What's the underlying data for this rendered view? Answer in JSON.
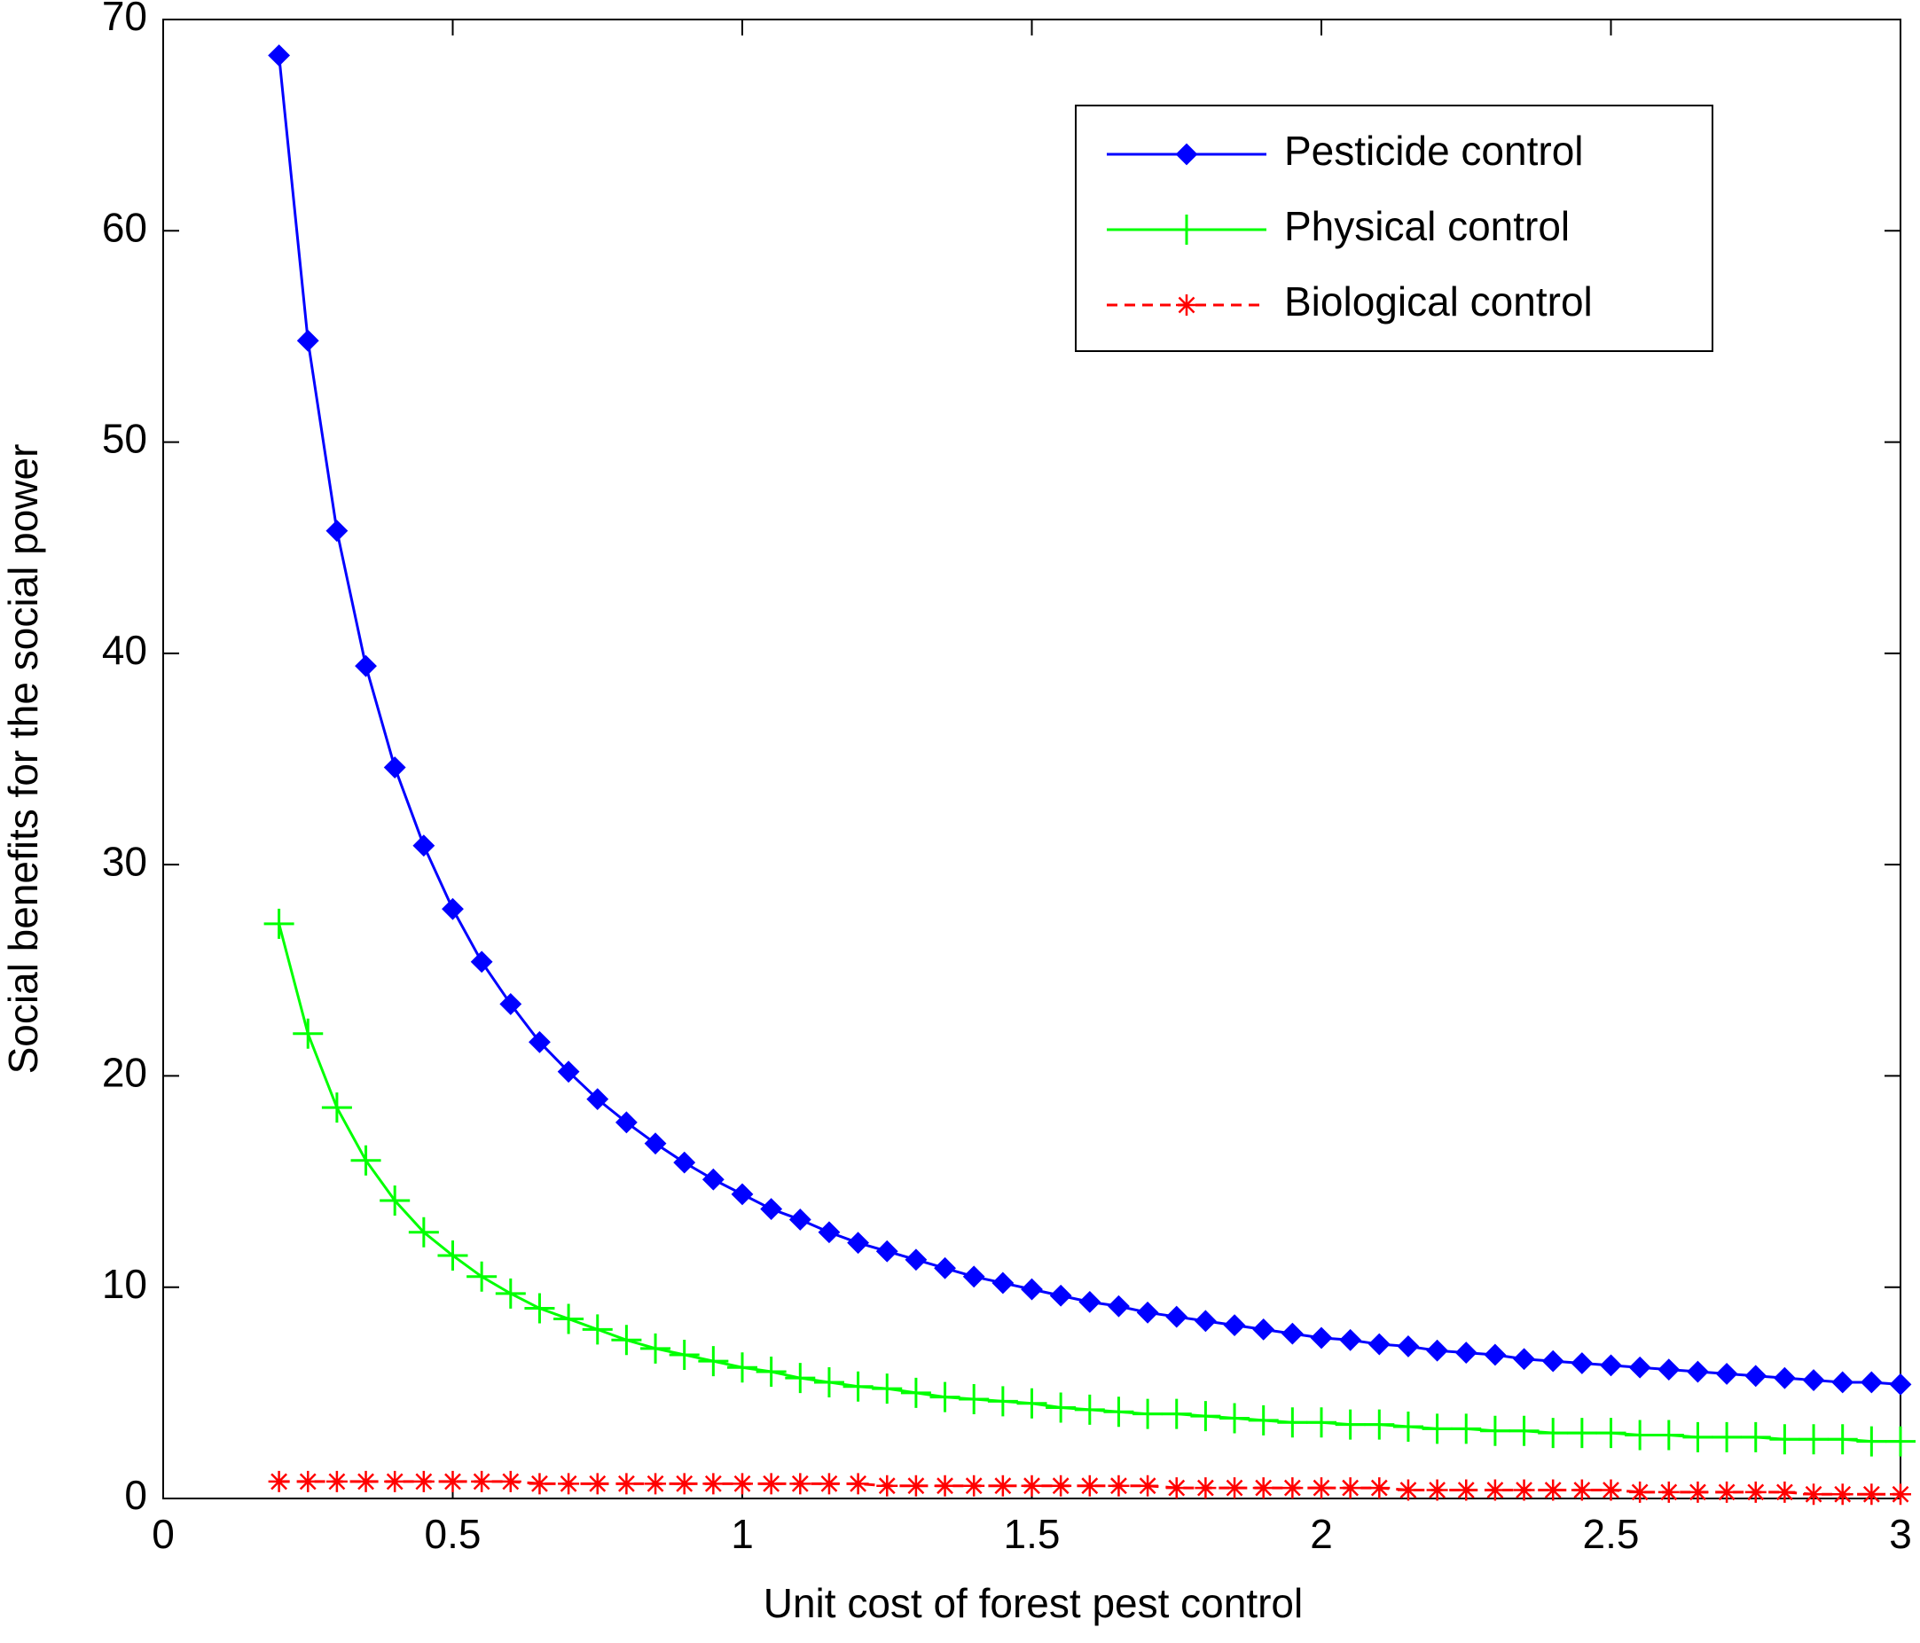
{
  "chart_data": {
    "type": "line",
    "xlabel": "Unit cost of forest pest control",
    "ylabel": "Social benefits for the social power",
    "x": [
      0.2,
      0.25,
      0.3,
      0.35,
      0.4,
      0.45,
      0.5,
      0.55,
      0.6,
      0.65,
      0.7,
      0.75,
      0.8,
      0.85,
      0.9,
      0.95,
      1.0,
      1.05,
      1.1,
      1.15,
      1.2,
      1.25,
      1.3,
      1.35,
      1.4,
      1.45,
      1.5,
      1.55,
      1.6,
      1.65,
      1.7,
      1.75,
      1.8,
      1.85,
      1.9,
      1.95,
      2.0,
      2.05,
      2.1,
      2.15,
      2.2,
      2.25,
      2.3,
      2.35,
      2.4,
      2.45,
      2.5,
      2.55,
      2.6,
      2.65,
      2.7,
      2.75,
      2.8,
      2.85,
      2.9,
      2.95,
      3.0
    ],
    "series": [
      {
        "name": "Pesticide control",
        "color": "#0000ff",
        "marker": "diamond",
        "dashed": false,
        "values": [
          68.3,
          54.8,
          45.8,
          39.4,
          34.6,
          30.9,
          27.9,
          25.4,
          23.4,
          21.6,
          20.2,
          18.9,
          17.8,
          16.8,
          15.9,
          15.1,
          14.4,
          13.7,
          13.2,
          12.6,
          12.1,
          11.7,
          11.3,
          10.9,
          10.5,
          10.2,
          9.9,
          9.6,
          9.3,
          9.1,
          8.8,
          8.6,
          8.4,
          8.2,
          8.0,
          7.8,
          7.6,
          7.5,
          7.3,
          7.2,
          7.0,
          6.9,
          6.8,
          6.6,
          6.5,
          6.4,
          6.3,
          6.2,
          6.1,
          6.0,
          5.9,
          5.8,
          5.7,
          5.6,
          5.5,
          5.5,
          5.4
        ]
      },
      {
        "name": "Physical control",
        "color": "#00ff00",
        "marker": "plus",
        "dashed": false,
        "values": [
          27.2,
          22.0,
          18.5,
          16.0,
          14.1,
          12.6,
          11.5,
          10.5,
          9.7,
          9.0,
          8.5,
          8.0,
          7.5,
          7.1,
          6.8,
          6.5,
          6.2,
          6.0,
          5.7,
          5.5,
          5.3,
          5.2,
          5.0,
          4.8,
          4.7,
          4.6,
          4.5,
          4.3,
          4.2,
          4.1,
          4.0,
          4.0,
          3.9,
          3.8,
          3.7,
          3.6,
          3.6,
          3.5,
          3.5,
          3.4,
          3.3,
          3.3,
          3.2,
          3.2,
          3.1,
          3.1,
          3.1,
          3.0,
          3.0,
          2.9,
          2.9,
          2.9,
          2.8,
          2.8,
          2.8,
          2.7,
          2.7
        ]
      },
      {
        "name": "Biological control",
        "color": "#ff0000",
        "marker": "asterisk",
        "dashed": true,
        "values": [
          0.8,
          0.8,
          0.8,
          0.8,
          0.8,
          0.8,
          0.8,
          0.8,
          0.8,
          0.7,
          0.7,
          0.7,
          0.7,
          0.7,
          0.7,
          0.7,
          0.7,
          0.7,
          0.7,
          0.7,
          0.7,
          0.6,
          0.6,
          0.6,
          0.6,
          0.6,
          0.6,
          0.6,
          0.6,
          0.6,
          0.6,
          0.5,
          0.5,
          0.5,
          0.5,
          0.5,
          0.5,
          0.5,
          0.5,
          0.4,
          0.4,
          0.4,
          0.4,
          0.4,
          0.4,
          0.4,
          0.4,
          0.3,
          0.3,
          0.3,
          0.3,
          0.3,
          0.3,
          0.2,
          0.2,
          0.2,
          0.2
        ]
      }
    ],
    "xlim": [
      0,
      3
    ],
    "ylim": [
      0,
      70
    ],
    "xticks": [
      0,
      0.5,
      1,
      1.5,
      2,
      2.5,
      3
    ],
    "yticks": [
      0,
      10,
      20,
      30,
      40,
      50,
      60,
      70
    ],
    "legend": "upper right"
  }
}
